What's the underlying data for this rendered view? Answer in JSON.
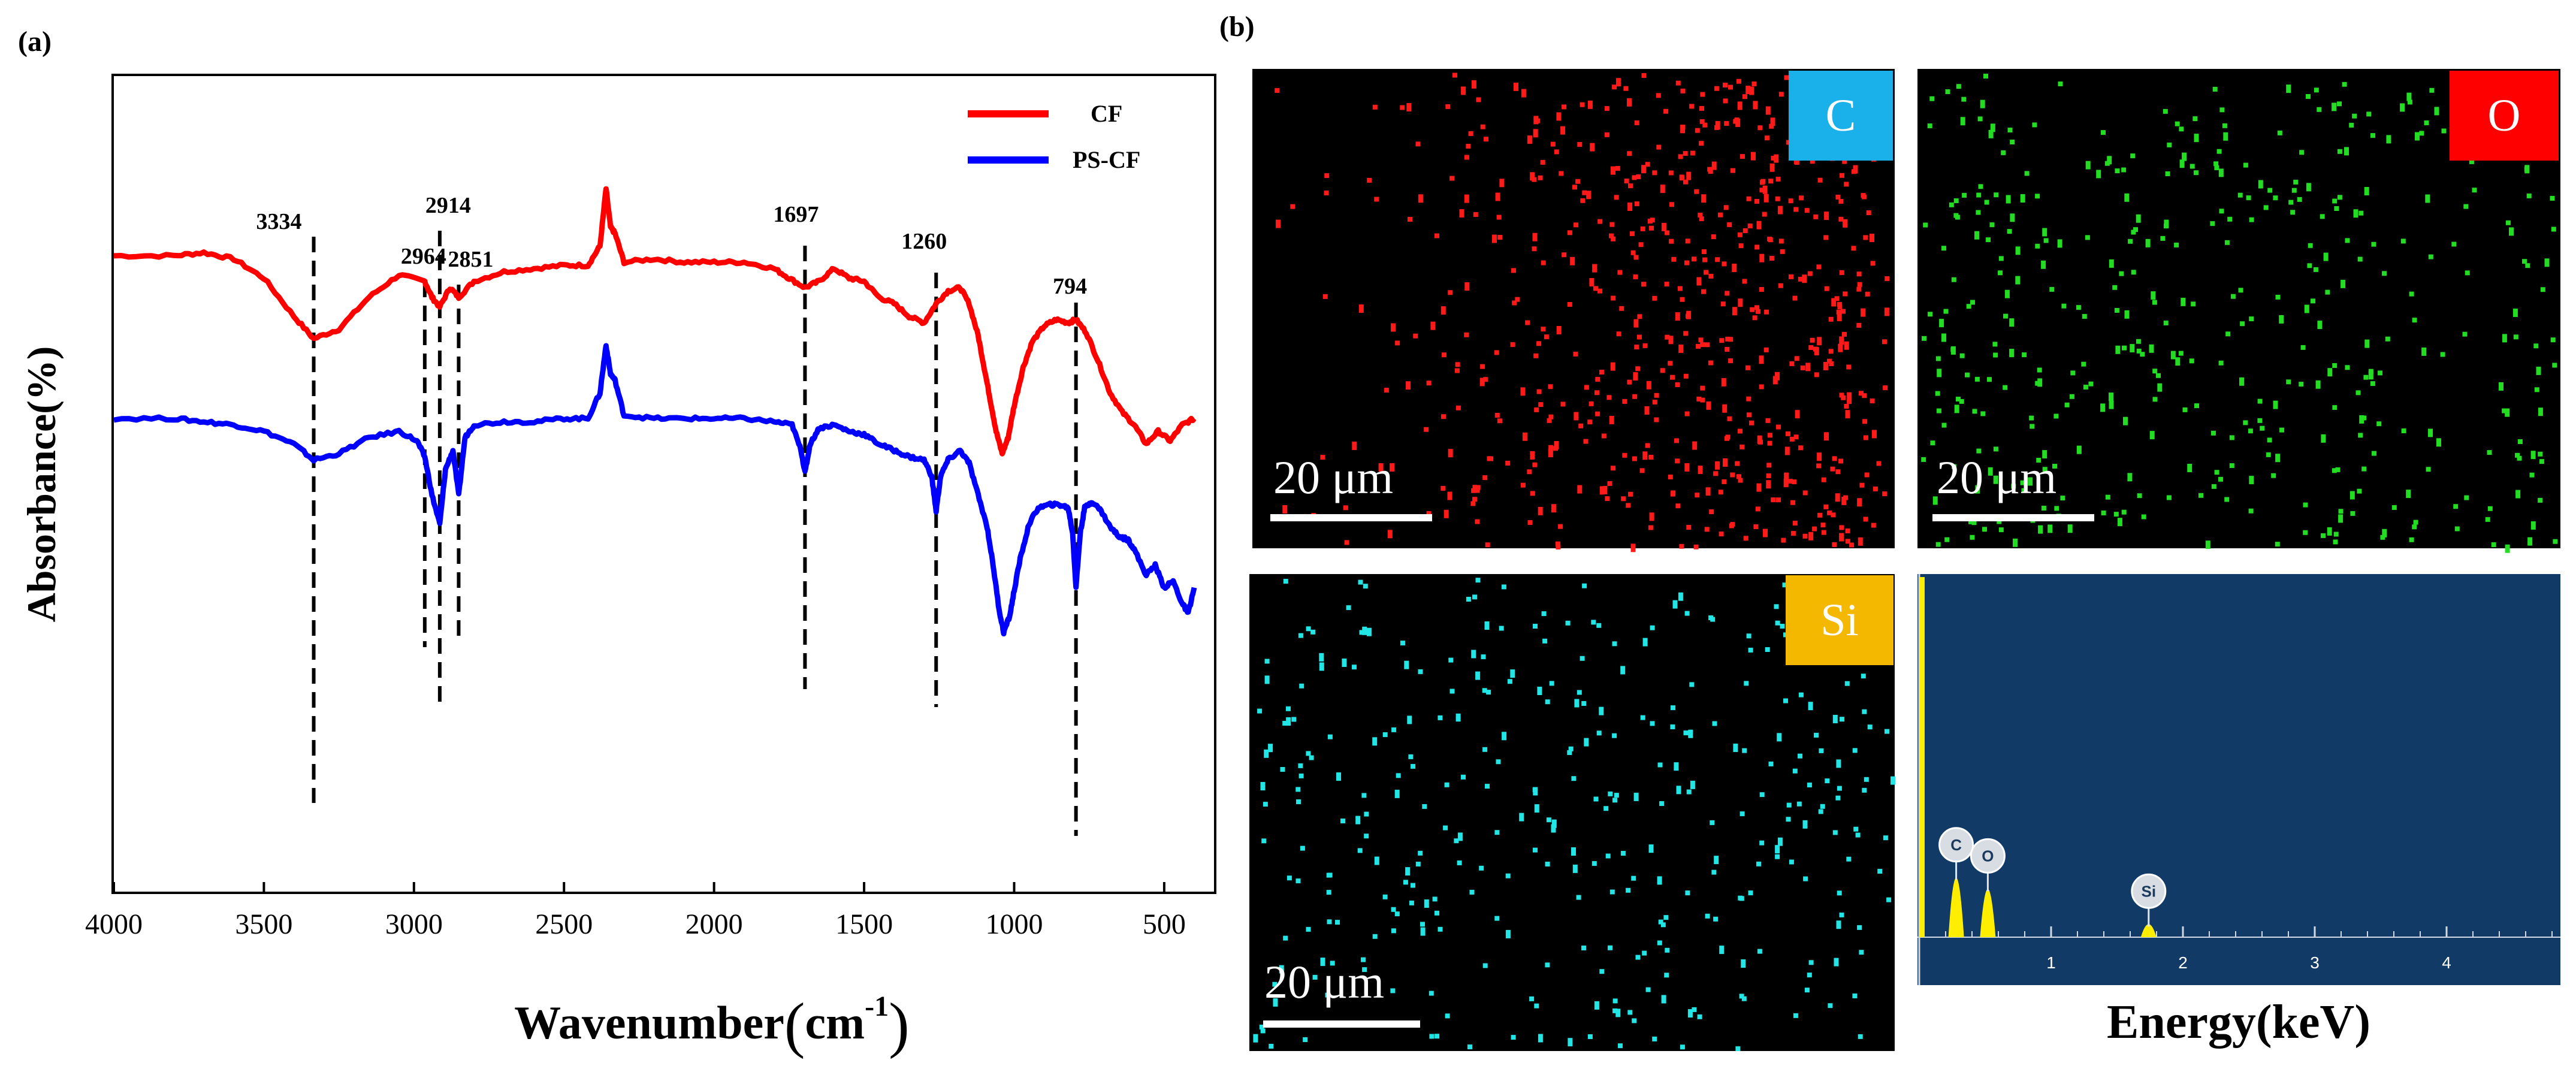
{
  "panel_a_label": "(a)",
  "panel_b_label": "(b)",
  "chart_data": [
    {
      "type": "line",
      "title": "",
      "xlabel": "Wavenumber(cm-1)",
      "xlabel_main": "Wavenumber",
      "xlabel_unit_open": "(",
      "xlabel_unit": "cm",
      "xlabel_sup": "-1",
      "xlabel_unit_close": ")",
      "ylabel": "Absorbance(%)",
      "xlim": [
        4000,
        380
      ],
      "ylim": [
        0,
        10
      ],
      "xticks": [
        "4000",
        "3500",
        "3000",
        "2500",
        "2000",
        "1500",
        "1000",
        "500"
      ],
      "xtick_values": [
        4000,
        3500,
        3000,
        2500,
        2000,
        1500,
        1000,
        500
      ],
      "legend_position": "top-right",
      "series": [
        {
          "name": "CF",
          "color": "#ff0000",
          "points": [
            [
              4000,
              8.95
            ],
            [
              3800,
              8.95
            ],
            [
              3700,
              9.0
            ],
            [
              3600,
              8.9
            ],
            [
              3500,
              8.6
            ],
            [
              3400,
              8.0
            ],
            [
              3334,
              7.65
            ],
            [
              3250,
              7.8
            ],
            [
              3150,
              8.3
            ],
            [
              3050,
              8.65
            ],
            [
              2964,
              8.55
            ],
            [
              2940,
              8.3
            ],
            [
              2914,
              8.15
            ],
            [
              2880,
              8.45
            ],
            [
              2851,
              8.3
            ],
            [
              2800,
              8.55
            ],
            [
              2700,
              8.7
            ],
            [
              2600,
              8.75
            ],
            [
              2500,
              8.8
            ],
            [
              2420,
              8.8
            ],
            [
              2380,
              9.1
            ],
            [
              2360,
              10.0
            ],
            [
              2345,
              9.4
            ],
            [
              2330,
              9.3
            ],
            [
              2300,
              8.85
            ],
            [
              2200,
              8.9
            ],
            [
              2100,
              8.85
            ],
            [
              2000,
              8.85
            ],
            [
              1900,
              8.85
            ],
            [
              1800,
              8.75
            ],
            [
              1750,
              8.6
            ],
            [
              1697,
              8.45
            ],
            [
              1650,
              8.55
            ],
            [
              1600,
              8.75
            ],
            [
              1550,
              8.6
            ],
            [
              1500,
              8.55
            ],
            [
              1450,
              8.3
            ],
            [
              1400,
              8.2
            ],
            [
              1350,
              8.0
            ],
            [
              1300,
              7.9
            ],
            [
              1260,
              8.2
            ],
            [
              1220,
              8.4
            ],
            [
              1180,
              8.45
            ],
            [
              1150,
              8.2
            ],
            [
              1120,
              7.7
            ],
            [
              1100,
              7.2
            ],
            [
              1080,
              6.7
            ],
            [
              1060,
              6.2
            ],
            [
              1040,
              5.85
            ],
            [
              1020,
              6.1
            ],
            [
              1000,
              6.6
            ],
            [
              970,
              7.2
            ],
            [
              940,
              7.6
            ],
            [
              900,
              7.85
            ],
            [
              860,
              7.95
            ],
            [
              820,
              7.9
            ],
            [
              794,
              7.95
            ],
            [
              760,
              7.75
            ],
            [
              720,
              7.3
            ],
            [
              680,
              6.8
            ],
            [
              640,
              6.5
            ],
            [
              600,
              6.3
            ],
            [
              560,
              6.0
            ],
            [
              520,
              6.2
            ],
            [
              480,
              6.05
            ],
            [
              440,
              6.3
            ],
            [
              400,
              6.4
            ]
          ]
        },
        {
          "name": "PS-CF",
          "color": "#0000ff",
          "points": [
            [
              4000,
              6.4
            ],
            [
              3800,
              6.4
            ],
            [
              3700,
              6.35
            ],
            [
              3600,
              6.3
            ],
            [
              3500,
              6.2
            ],
            [
              3400,
              6.0
            ],
            [
              3334,
              5.75
            ],
            [
              3250,
              5.85
            ],
            [
              3150,
              6.1
            ],
            [
              3050,
              6.2
            ],
            [
              2990,
              6.05
            ],
            [
              2964,
              5.8
            ],
            [
              2940,
              5.2
            ],
            [
              2914,
              4.75
            ],
            [
              2895,
              5.6
            ],
            [
              2870,
              5.9
            ],
            [
              2851,
              5.2
            ],
            [
              2830,
              6.1
            ],
            [
              2800,
              6.3
            ],
            [
              2700,
              6.35
            ],
            [
              2600,
              6.35
            ],
            [
              2500,
              6.4
            ],
            [
              2420,
              6.4
            ],
            [
              2380,
              6.8
            ],
            [
              2360,
              7.55
            ],
            [
              2345,
              7.1
            ],
            [
              2330,
              7.0
            ],
            [
              2300,
              6.45
            ],
            [
              2200,
              6.4
            ],
            [
              2100,
              6.4
            ],
            [
              2000,
              6.4
            ],
            [
              1900,
              6.4
            ],
            [
              1800,
              6.35
            ],
            [
              1740,
              6.3
            ],
            [
              1710,
              5.9
            ],
            [
              1697,
              5.55
            ],
            [
              1680,
              6.0
            ],
            [
              1650,
              6.25
            ],
            [
              1600,
              6.3
            ],
            [
              1550,
              6.2
            ],
            [
              1500,
              6.15
            ],
            [
              1450,
              6.0
            ],
            [
              1400,
              5.9
            ],
            [
              1350,
              5.8
            ],
            [
              1300,
              5.75
            ],
            [
              1275,
              5.5
            ],
            [
              1260,
              4.95
            ],
            [
              1245,
              5.5
            ],
            [
              1220,
              5.75
            ],
            [
              1180,
              5.9
            ],
            [
              1150,
              5.7
            ],
            [
              1120,
              5.2
            ],
            [
              1090,
              4.7
            ],
            [
              1070,
              4.1
            ],
            [
              1050,
              3.4
            ],
            [
              1035,
              3.05
            ],
            [
              1015,
              3.3
            ],
            [
              1000,
              3.7
            ],
            [
              980,
              4.2
            ],
            [
              950,
              4.75
            ],
            [
              920,
              5.0
            ],
            [
              880,
              5.05
            ],
            [
              850,
              5.05
            ],
            [
              820,
              5.0
            ],
            [
              805,
              4.6
            ],
            [
              794,
              3.75
            ],
            [
              780,
              4.6
            ],
            [
              765,
              5.0
            ],
            [
              740,
              5.1
            ],
            [
              710,
              4.95
            ],
            [
              680,
              4.7
            ],
            [
              650,
              4.55
            ],
            [
              620,
              4.5
            ],
            [
              600,
              4.35
            ],
            [
              560,
              3.95
            ],
            [
              530,
              4.1
            ],
            [
              500,
              3.75
            ],
            [
              470,
              3.85
            ],
            [
              440,
              3.5
            ],
            [
              420,
              3.35
            ],
            [
              400,
              3.75
            ]
          ]
        }
      ],
      "annotations": [
        {
          "label": "3334",
          "x": 3334
        },
        {
          "label": "2964",
          "x": 2964
        },
        {
          "label": "2914",
          "x": 2914
        },
        {
          "label": "2851",
          "x": 2851
        },
        {
          "label": "1697",
          "x": 1697
        },
        {
          "label": "1260",
          "x": 1260
        },
        {
          "label": "794",
          "x": 794
        }
      ]
    },
    {
      "type": "bar",
      "title": "",
      "xlabel": "Energy(keV)",
      "xticks": [
        "1",
        "2",
        "3",
        "4"
      ],
      "xtick_values": [
        1,
        2,
        3,
        4
      ],
      "xlim": [
        0,
        4.85
      ],
      "ylim": [
        0,
        10
      ],
      "background": "#123a66",
      "peaks": [
        {
          "element": "C",
          "energy": 0.28,
          "height": 1.6
        },
        {
          "element": "O",
          "energy": 0.52,
          "height": 1.3
        },
        {
          "element": "Si",
          "energy": 1.74,
          "height": 0.35
        }
      ]
    }
  ],
  "maps": [
    {
      "element": "C",
      "label_bg": "#1ab0ea",
      "dot_color": "#ff1a1a",
      "scale_bar": "20 μm",
      "label_side": "right"
    },
    {
      "element": "O",
      "label_bg": "#ff0000",
      "dot_color": "#22dd22",
      "scale_bar": "20 μm",
      "label_side": "right"
    },
    {
      "element": "Si",
      "label_bg": "#f5b800",
      "dot_color": "#22e6e6",
      "scale_bar": "20 μm",
      "label_side": "right"
    }
  ],
  "colors": {
    "cf": "#ff0000",
    "pscf": "#0000ff",
    "eds_background": "#123a66",
    "eds_peak": "#ffee00"
  }
}
